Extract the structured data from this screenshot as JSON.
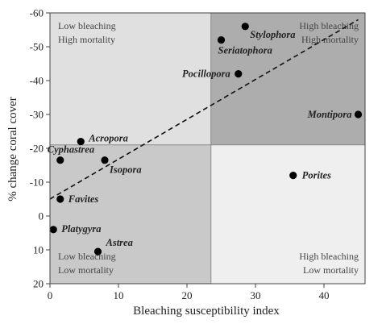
{
  "chart_data": {
    "type": "scatter",
    "title": "",
    "xlabel": "Bleaching susceptibility index",
    "ylabel": "% change coral cover",
    "xlim": [
      0,
      46
    ],
    "ylim": [
      20,
      -60
    ],
    "y_axis_inverted": true,
    "xticks": [
      "0",
      "10",
      "20",
      "30",
      "40"
    ],
    "yticks": [
      "-60",
      "-50",
      "-40",
      "-30",
      "-20",
      "-10",
      "0",
      "10",
      "20"
    ],
    "grid": false,
    "quadrant_split": {
      "x": 23.5,
      "y": -21
    },
    "quadrants": [
      {
        "position": "top-left",
        "lines": [
          "Low bleaching",
          "High mortality"
        ],
        "fill": "#e0e0e0"
      },
      {
        "position": "top-right",
        "lines": [
          "High bleaching",
          "High mortality"
        ],
        "fill": "#adadad"
      },
      {
        "position": "bottom-left",
        "lines": [
          "Low bleaching",
          "Low mortality"
        ],
        "fill": "#c9c9c9"
      },
      {
        "position": "bottom-right",
        "lines": [
          "High bleaching",
          "Low mortality"
        ],
        "fill": "#efefef"
      }
    ],
    "points": [
      {
        "label": "Stylophora",
        "x": 28.5,
        "y": -56
      },
      {
        "label": "Seriatophora",
        "x": 25,
        "y": -52
      },
      {
        "label": "Pocillopora",
        "x": 27.5,
        "y": -42
      },
      {
        "label": "Montipora",
        "x": 45,
        "y": -30
      },
      {
        "label": "Porites",
        "x": 35.5,
        "y": -12
      },
      {
        "label": "Acropora",
        "x": 4.5,
        "y": -22
      },
      {
        "label": "Cyphastrea",
        "x": 1.5,
        "y": -16.5
      },
      {
        "label": "Isopora",
        "x": 8,
        "y": -16.5
      },
      {
        "label": "Favites",
        "x": 1.5,
        "y": -5
      },
      {
        "label": "Platygyra",
        "x": 0.5,
        "y": 4
      },
      {
        "label": "Astrea",
        "x": 7,
        "y": 10.5
      }
    ],
    "trendline": {
      "style": "dashed",
      "from": {
        "x": 0,
        "y": -5
      },
      "to": {
        "x": 45,
        "y": -58
      }
    }
  }
}
